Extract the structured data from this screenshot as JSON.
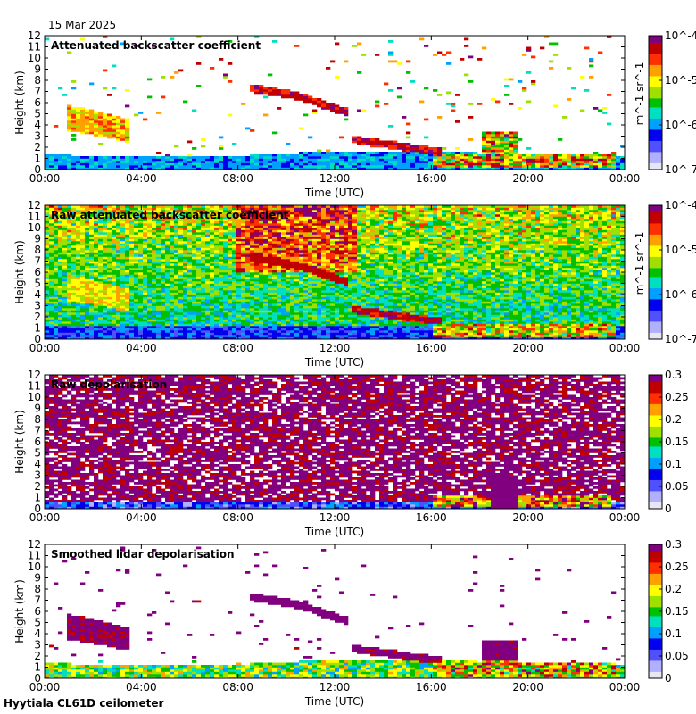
{
  "date": "15 Mar 2025",
  "footer": "Hyytiala CL61D ceilometer",
  "colors": {
    "background": "#ffffff",
    "axis": "#000000",
    "colormap": [
      "#e6e6f5",
      "#b0b0ff",
      "#5050ff",
      "#0000ee",
      "#00a0ff",
      "#00e0c0",
      "#00c000",
      "#a0e000",
      "#ffff00",
      "#ffa000",
      "#ff3000",
      "#c00000",
      "#800080"
    ]
  },
  "chart_data": [
    {
      "type": "heatmap",
      "title": "Attenuated backscatter coefficient",
      "xlabel": "Time (UTC)",
      "ylabel": "Height (km)",
      "xlim": [
        "00:00",
        "00:00"
      ],
      "ylim": [
        0,
        12
      ],
      "x_ticks": [
        "00:00",
        "04:00",
        "08:00",
        "12:00",
        "16:00",
        "20:00",
        "00:00"
      ],
      "y_ticks": [
        "0",
        "1",
        "2",
        "3",
        "4",
        "5",
        "6",
        "7",
        "8",
        "9",
        "10",
        "11",
        "12"
      ],
      "colorbar": {
        "scale": "log",
        "range": [
          1e-07,
          0.0001
        ],
        "tick_labels": [
          "10^-4",
          "10^-5",
          "10^-6",
          "10^-7"
        ],
        "label": "m^-1 sr^-1"
      }
    },
    {
      "type": "heatmap",
      "title": "Raw attenuated backscatter coefficient",
      "xlabel": "Time (UTC)",
      "ylabel": "Height (km)",
      "xlim": [
        "00:00",
        "00:00"
      ],
      "ylim": [
        0,
        12
      ],
      "x_ticks": [
        "00:00",
        "04:00",
        "08:00",
        "12:00",
        "16:00",
        "20:00",
        "00:00"
      ],
      "y_ticks": [
        "0",
        "1",
        "2",
        "3",
        "4",
        "5",
        "6",
        "7",
        "8",
        "9",
        "10",
        "11",
        "12"
      ],
      "colorbar": {
        "scale": "log",
        "range": [
          1e-07,
          0.0001
        ],
        "tick_labels": [
          "10^-4",
          "10^-5",
          "10^-6",
          "10^-7"
        ],
        "label": "m^-1 sr^-1"
      }
    },
    {
      "type": "heatmap",
      "title": "Raw depolarisation",
      "xlabel": "Time (UTC)",
      "ylabel": "Height (km)",
      "xlim": [
        "00:00",
        "00:00"
      ],
      "ylim": [
        0,
        12
      ],
      "x_ticks": [
        "00:00",
        "04:00",
        "08:00",
        "12:00",
        "16:00",
        "20:00",
        "00:00"
      ],
      "y_ticks": [
        "0",
        "1",
        "2",
        "3",
        "4",
        "5",
        "6",
        "7",
        "8",
        "9",
        "10",
        "11",
        "12"
      ],
      "colorbar": {
        "scale": "linear",
        "range": [
          0,
          0.3
        ],
        "tick_labels": [
          "0.3",
          "0.25",
          "0.2",
          "0.15",
          "0.1",
          "0.05",
          "0"
        ]
      }
    },
    {
      "type": "heatmap",
      "title": "Smoothed lidar depolarisation",
      "xlabel": "Time (UTC)",
      "ylabel": "Height (km)",
      "xlim": [
        "00:00",
        "00:00"
      ],
      "ylim": [
        0,
        12
      ],
      "x_ticks": [
        "00:00",
        "04:00",
        "08:00",
        "12:00",
        "16:00",
        "20:00",
        "00:00"
      ],
      "y_ticks": [
        "0",
        "1",
        "2",
        "3",
        "4",
        "5",
        "6",
        "7",
        "8",
        "9",
        "10",
        "11",
        "12"
      ],
      "colorbar": {
        "scale": "linear",
        "range": [
          0,
          0.3
        ],
        "tick_labels": [
          "0.3",
          "0.25",
          "0.2",
          "0.15",
          "0.1",
          "0.05",
          "0"
        ]
      }
    }
  ]
}
